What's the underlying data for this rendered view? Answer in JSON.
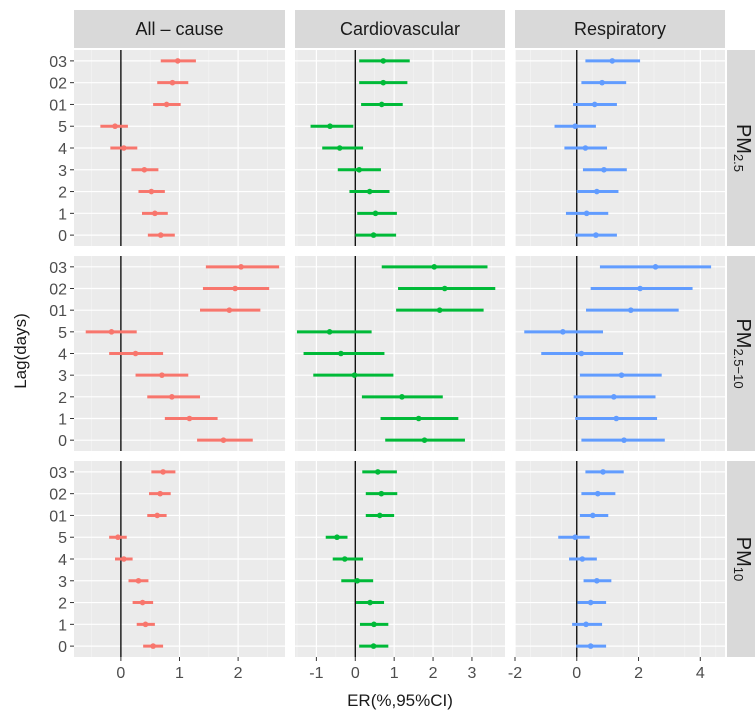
{
  "chart_data": {
    "type": "forest",
    "title": "",
    "xlabel": "ER(%,95%CI)",
    "ylabel": "Lag(days)",
    "lag_categories": [
      "0",
      "1",
      "2",
      "3",
      "4",
      "5",
      "01",
      "02",
      "03"
    ],
    "columns": [
      {
        "name": "All – cause",
        "color": "#F8766D",
        "xlim": [
          -0.8,
          2.8
        ],
        "ticks": [
          0,
          1,
          2
        ]
      },
      {
        "name": "Cardiovascular",
        "color": "#00BA38",
        "xlim": [
          -1.55,
          3.85
        ],
        "ticks": [
          -1,
          0,
          1,
          2,
          3
        ]
      },
      {
        "name": "Respiratory",
        "color": "#619CFF",
        "xlim": [
          -2.0,
          4.8
        ],
        "ticks": [
          -2,
          0,
          2,
          4
        ]
      }
    ],
    "rows": [
      {
        "name": "PM",
        "sub": "2.5"
      },
      {
        "name": "PM",
        "sub": "2.5−10"
      },
      {
        "name": "PM",
        "sub": "10"
      }
    ],
    "panels": [
      [
        {
          "est": [
            0.68,
            0.58,
            0.52,
            0.4,
            0.05,
            -0.1,
            0.78,
            0.88,
            0.97
          ],
          "lo": [
            0.46,
            0.36,
            0.3,
            0.18,
            -0.18,
            -0.35,
            0.55,
            0.62,
            0.68
          ],
          "hi": [
            0.92,
            0.8,
            0.75,
            0.64,
            0.28,
            0.12,
            1.02,
            1.15,
            1.28
          ]
        },
        {
          "est": [
            0.47,
            0.52,
            0.37,
            0.1,
            -0.4,
            -0.65,
            0.68,
            0.72,
            0.72
          ],
          "lo": [
            0.0,
            0.05,
            -0.15,
            -0.45,
            -0.85,
            -1.15,
            0.15,
            0.1,
            0.1
          ],
          "hi": [
            1.05,
            1.07,
            0.88,
            0.66,
            0.2,
            -0.05,
            1.22,
            1.34,
            1.4
          ]
        },
        {
          "est": [
            0.62,
            0.32,
            0.65,
            0.88,
            0.28,
            -0.05,
            0.58,
            0.82,
            1.15
          ],
          "lo": [
            -0.05,
            -0.35,
            0.0,
            0.2,
            -0.4,
            -0.72,
            -0.12,
            0.15,
            0.28
          ],
          "hi": [
            1.3,
            1.02,
            1.35,
            1.62,
            0.98,
            0.62,
            1.3,
            1.6,
            2.05
          ]
        }
      ],
      [
        {
          "est": [
            1.75,
            1.17,
            0.87,
            0.7,
            0.25,
            -0.16,
            1.85,
            1.95,
            2.05
          ],
          "lo": [
            1.3,
            0.75,
            0.45,
            0.25,
            -0.2,
            -0.6,
            1.35,
            1.4,
            1.45
          ],
          "hi": [
            2.25,
            1.65,
            1.35,
            1.15,
            0.72,
            0.27,
            2.38,
            2.53,
            2.7
          ]
        },
        {
          "est": [
            1.78,
            1.63,
            1.2,
            -0.02,
            -0.37,
            -0.66,
            2.17,
            2.3,
            2.03
          ],
          "lo": [
            0.77,
            0.65,
            0.17,
            -1.08,
            -1.33,
            -1.5,
            1.05,
            1.1,
            0.68
          ],
          "hi": [
            2.82,
            2.65,
            2.25,
            0.98,
            0.75,
            0.42,
            3.3,
            3.6,
            3.4
          ]
        },
        {
          "est": [
            1.53,
            1.28,
            1.2,
            1.45,
            0.15,
            -0.45,
            1.75,
            2.05,
            2.55
          ],
          "lo": [
            0.15,
            -0.05,
            -0.1,
            0.1,
            -1.15,
            -1.7,
            0.3,
            0.45,
            0.75
          ],
          "hi": [
            2.85,
            2.6,
            2.55,
            2.75,
            1.5,
            0.85,
            3.3,
            3.75,
            4.35
          ]
        }
      ],
      [
        {
          "est": [
            0.55,
            0.42,
            0.37,
            0.3,
            0.05,
            -0.05,
            0.62,
            0.67,
            0.72
          ],
          "lo": [
            0.38,
            0.27,
            0.2,
            0.13,
            -0.1,
            -0.2,
            0.45,
            0.48,
            0.52
          ],
          "hi": [
            0.72,
            0.58,
            0.55,
            0.47,
            0.2,
            0.1,
            0.78,
            0.85,
            0.93
          ]
        },
        {
          "est": [
            0.47,
            0.48,
            0.38,
            0.05,
            -0.27,
            -0.47,
            0.63,
            0.67,
            0.58
          ],
          "lo": [
            0.1,
            0.12,
            0.02,
            -0.36,
            -0.58,
            -0.76,
            0.27,
            0.27,
            0.18
          ],
          "hi": [
            0.85,
            0.85,
            0.74,
            0.46,
            0.2,
            -0.2,
            1.0,
            1.08,
            1.07
          ]
        },
        {
          "est": [
            0.45,
            0.3,
            0.45,
            0.65,
            0.18,
            -0.05,
            0.52,
            0.68,
            0.85
          ],
          "lo": [
            -0.02,
            -0.15,
            0.02,
            0.22,
            -0.25,
            -0.6,
            0.1,
            0.15,
            0.28
          ],
          "hi": [
            0.95,
            0.82,
            0.95,
            1.12,
            0.65,
            0.42,
            1.02,
            1.25,
            1.52
          ]
        }
      ]
    ]
  }
}
